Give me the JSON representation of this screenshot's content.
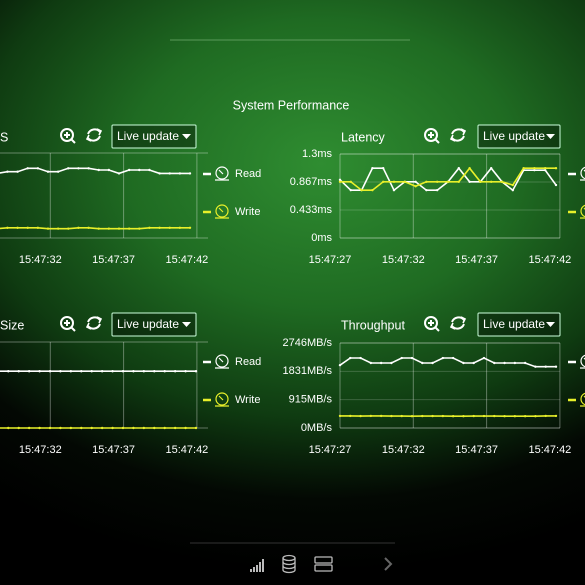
{
  "header": {
    "title": "System Performance"
  },
  "panels": [
    {
      "title": "S",
      "control": "Live update",
      "chart": {
        "type": "line",
        "xticks": [
          "15:47:32",
          "15:47:37",
          "15:47:42"
        ],
        "ylim": [
          0,
          100
        ],
        "series": [
          {
            "name": "Read",
            "color": "#ffffff",
            "values": [
              78,
              78,
              76,
              78,
              78,
              82,
              82,
              78,
              78,
              82,
              82,
              82,
              80,
              80,
              76,
              80,
              80,
              80,
              76,
              76,
              76,
              76
            ]
          },
          {
            "name": "Write",
            "color": "#e8f02a",
            "values": [
              12,
              12,
              11,
              12,
              12,
              12,
              12,
              11,
              11,
              11,
              12,
              12,
              11,
              11,
              11,
              11,
              11,
              12,
              12,
              12,
              12,
              12
            ]
          }
        ]
      }
    },
    {
      "title": "Latency",
      "control": "Live update",
      "chart": {
        "type": "line",
        "xticks": [
          "15:47:27",
          "15:47:32",
          "15:47:37",
          "15:47:42"
        ],
        "ylim": [
          0,
          1.3
        ],
        "yticks": [
          {
            "value": 1.3,
            "label": "1.3ms"
          },
          {
            "value": 0.867,
            "label": "0.867ms"
          },
          {
            "value": 0.433,
            "label": "0.433ms"
          },
          {
            "value": 0,
            "label": "0ms"
          }
        ],
        "series": [
          {
            "name": "Read",
            "color": "#ffffff",
            "values": [
              0.9,
              0.74,
              0.74,
              1.08,
              1.08,
              0.74,
              0.87,
              0.87,
              0.74,
              0.74,
              0.87,
              1.08,
              0.87,
              0.87,
              1.08,
              0.87,
              0.74,
              1.05,
              1.05,
              1.05,
              0.82
            ]
          },
          {
            "name": "Write",
            "color": "#e8f02a",
            "values": [
              0.87,
              0.87,
              0.74,
              0.74,
              0.87,
              0.87,
              0.87,
              0.8,
              0.87,
              0.87,
              0.87,
              0.87,
              1.08,
              0.87,
              0.87,
              0.87,
              0.82,
              1.08,
              1.08,
              1.08,
              1.08
            ]
          }
        ]
      }
    },
    {
      "title": "Size",
      "control": "Live update",
      "chart": {
        "type": "line",
        "xticks": [
          "15:47:32",
          "15:47:37",
          "15:47:42"
        ],
        "ylim": [
          0,
          100
        ],
        "series": [
          {
            "name": "Read",
            "color": "#ffffff",
            "values": [
              66,
              66,
              66,
              66,
              66,
              66,
              66,
              66,
              66,
              66,
              66,
              66,
              66,
              66,
              66,
              66,
              66,
              66,
              66,
              66,
              66,
              66
            ]
          },
          {
            "name": "Write",
            "color": "#e8f02a",
            "values": [
              0,
              0,
              0,
              0,
              0,
              0,
              0,
              0,
              0,
              0,
              0,
              0,
              0,
              0,
              0,
              0,
              0,
              0,
              0,
              0,
              0,
              0
            ]
          }
        ]
      }
    },
    {
      "title": "Throughput",
      "control": "Live update",
      "chart": {
        "type": "line",
        "xticks": [
          "15:47:27",
          "15:47:32",
          "15:47:37",
          "15:47:42"
        ],
        "ylim": [
          0,
          2746
        ],
        "yticks": [
          {
            "value": 2746,
            "label": "2746MB/s"
          },
          {
            "value": 1831,
            "label": "1831MB/s"
          },
          {
            "value": 915,
            "label": "915MB/s"
          },
          {
            "value": 0,
            "label": "0MB/s"
          }
        ],
        "series": [
          {
            "name": "Read",
            "color": "#ffffff",
            "values": [
              2030,
              2260,
              2260,
              2100,
              2100,
              2100,
              2260,
              2260,
              2100,
              2100,
              2260,
              2260,
              2100,
              2100,
              2260,
              2100,
              2100,
              2100,
              2100,
              1980,
              1980,
              1980
            ]
          },
          {
            "name": "Write",
            "color": "#e8f02a",
            "values": [
              390,
              390,
              385,
              390,
              390,
              385,
              385,
              380,
              385,
              385,
              385,
              380,
              380,
              385,
              385,
              385,
              380,
              380,
              380,
              380,
              390,
              390
            ]
          }
        ]
      }
    }
  ]
}
